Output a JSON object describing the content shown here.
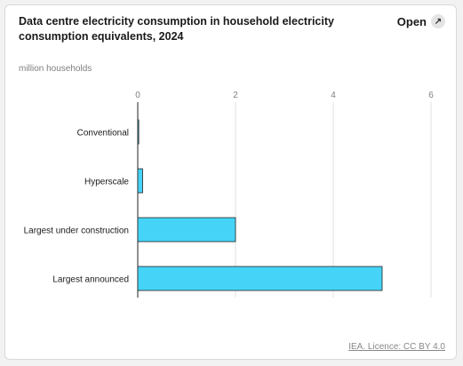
{
  "card": {
    "title": "Data centre electricity consumption in household electricity consumption equivalents, 2024",
    "open_label": "Open",
    "open_icon": "external-arrow-icon",
    "unit_label": "million households",
    "footer_link": "IEA. Licence: CC BY 4.0"
  },
  "colors": {
    "bar_fill": "#45d4f7",
    "bar_stroke": "#222222",
    "grid": "#e0e0e0",
    "axis": "#222222"
  },
  "chart_data": {
    "type": "bar",
    "orientation": "horizontal",
    "categories": [
      "Conventional",
      "Hyperscale",
      "Largest under construction",
      "Largest announced"
    ],
    "values": [
      0.02,
      0.1,
      2.0,
      5.0
    ],
    "xlim": [
      0,
      6
    ],
    "xticks": [
      0,
      2,
      4,
      6
    ],
    "grid": true,
    "legend": "none"
  }
}
